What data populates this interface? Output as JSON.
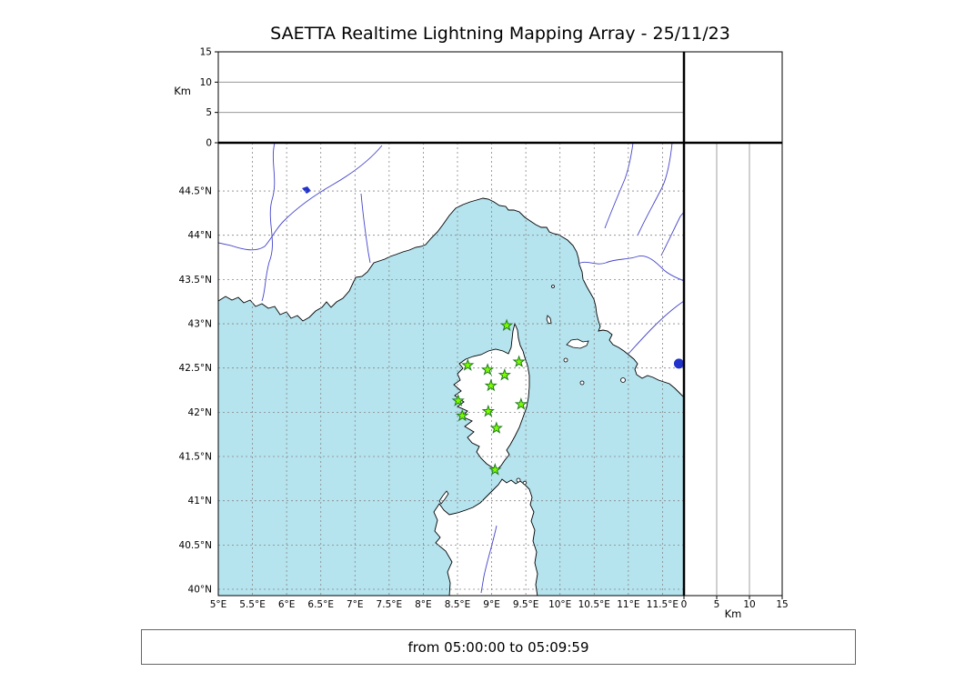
{
  "title": "SAETTA Realtime Lightning Mapping Array - 25/11/23",
  "footer": {
    "text": "from 05:00:00 to 05:09:59"
  },
  "colors": {
    "sea": "#b5e3ee",
    "land": "#ffffff",
    "coast": "#000000",
    "river": "#4444cc",
    "lake": "#2233cc",
    "grid_map": "#888888",
    "grid_alt": "#888888",
    "frame": "#000000",
    "station_fill": "#7cfc00",
    "station_edge": "#1e7a1e",
    "text": "#000000"
  },
  "chart_data": {
    "type": "scatter",
    "title": "SAETTA Realtime Lightning Mapping Array - 25/11/23",
    "time_window": "from 05:00:00 to 05:09:59",
    "panels": {
      "map": {
        "lon_range": [
          5.0,
          11.81
        ],
        "lat_range": [
          39.93,
          45.05
        ],
        "grid": "dashed",
        "lon_ticks": [
          {
            "value": 5,
            "label": "5°E"
          },
          {
            "value": 5.5,
            "label": "5.5°E"
          },
          {
            "value": 6,
            "label": "6°E"
          },
          {
            "value": 6.5,
            "label": "6.5°E"
          },
          {
            "value": 7,
            "label": "7°E"
          },
          {
            "value": 7.5,
            "label": "7.5°E"
          },
          {
            "value": 8,
            "label": "8°E"
          },
          {
            "value": 8.5,
            "label": "8.5°E"
          },
          {
            "value": 9,
            "label": "9°E"
          },
          {
            "value": 9.5,
            "label": "9.5°E"
          },
          {
            "value": 10,
            "label": "10°E"
          },
          {
            "value": 10.5,
            "label": "10.5°E"
          },
          {
            "value": 11,
            "label": "11°E"
          },
          {
            "value": 11.5,
            "label": "11.5°E"
          }
        ],
        "lat_ticks": [
          {
            "value": 44.5,
            "label": "44.5°N"
          },
          {
            "value": 44,
            "label": "44°N"
          },
          {
            "value": 43.5,
            "label": "43.5°N"
          },
          {
            "value": 43,
            "label": "43°N"
          },
          {
            "value": 42.5,
            "label": "42.5°N"
          },
          {
            "value": 42,
            "label": "42°N"
          },
          {
            "value": 41.5,
            "label": "41.5°N"
          },
          {
            "value": 41,
            "label": "41°N"
          },
          {
            "value": 40.5,
            "label": "40.5°N"
          },
          {
            "value": 40,
            "label": "40°N"
          }
        ]
      },
      "altitude": {
        "label": "Km",
        "range": [
          0,
          15
        ],
        "ticks": [
          {
            "value": 0,
            "label": "0"
          },
          {
            "value": 5,
            "label": "5"
          },
          {
            "value": 10,
            "label": "10"
          },
          {
            "value": 15,
            "label": "15"
          }
        ],
        "gridlines": [
          5,
          10
        ]
      }
    },
    "stations": [
      {
        "lon": 9.22,
        "lat": 42.98
      },
      {
        "lon": 9.4,
        "lat": 42.57
      },
      {
        "lon": 8.65,
        "lat": 42.53
      },
      {
        "lon": 8.94,
        "lat": 42.48
      },
      {
        "lon": 9.19,
        "lat": 42.42
      },
      {
        "lon": 8.99,
        "lat": 42.3
      },
      {
        "lon": 8.51,
        "lat": 42.13
      },
      {
        "lon": 9.43,
        "lat": 42.09
      },
      {
        "lon": 8.95,
        "lat": 42.01
      },
      {
        "lon": 8.57,
        "lat": 41.96
      },
      {
        "lon": 9.07,
        "lat": 41.82
      },
      {
        "lon": 9.05,
        "lat": 41.35
      }
    ],
    "lake_point": {
      "lon": 11.74,
      "lat": 42.55
    },
    "lightning_sources": []
  }
}
